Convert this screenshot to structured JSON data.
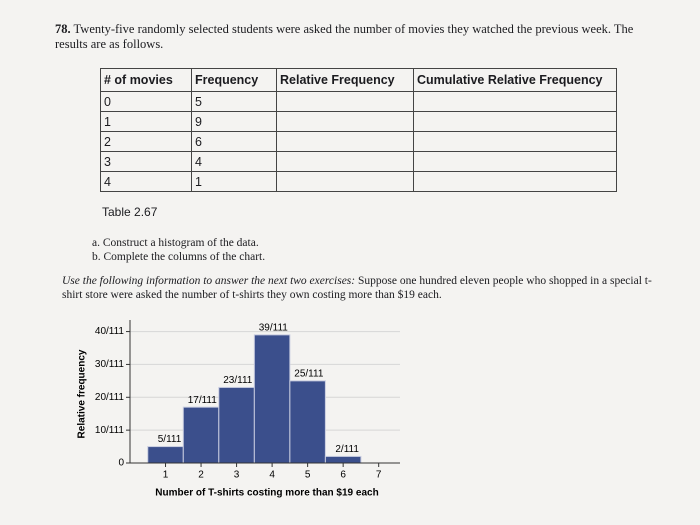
{
  "problem": {
    "number": "78.",
    "text": "Twenty-five randomly selected students were asked the number of movies they watched the previous week. The results are as follows."
  },
  "table": {
    "header": [
      "# of movies",
      "Frequency",
      "Relative Frequency",
      "Cumulative Relative Frequency"
    ],
    "rows": [
      [
        "0",
        "5"
      ],
      [
        "1",
        "9"
      ],
      [
        "2",
        "6"
      ],
      [
        "3",
        "4"
      ],
      [
        "4",
        "1"
      ]
    ],
    "caption": "Table 2.67"
  },
  "parts": [
    "a.  Construct a histogram of the data.",
    "b.  Complete the columns of the chart."
  ],
  "info": {
    "lead": "Use the following information to answer the next two exercises:",
    "text": "Suppose one hundred eleven people who shopped in a special t-shirt store were asked the number of t-shirts they own costing more than $19 each."
  },
  "chart_data": {
    "type": "histogram",
    "xlabel": "Number of T-shirts costing more than $19 each",
    "ylabel": "Relative frequency",
    "bins": [
      0.5,
      1.5,
      2.5,
      3.5,
      4.5,
      5.5,
      6.5
    ],
    "values": [
      5,
      17,
      23,
      39,
      25,
      2
    ],
    "value_labels": [
      "5/111",
      "17/111",
      "23/111",
      "39/111",
      "25/111",
      "2/111"
    ],
    "color": "#3b4f8c",
    "xlim": [
      0,
      7.6
    ],
    "xticks": [
      1,
      2,
      3,
      4,
      5,
      6,
      7
    ],
    "ylim": [
      0,
      42
    ],
    "yticks": [
      0,
      {
        "value": 10,
        "label": "10/111"
      },
      {
        "value": 20,
        "label": "20/111"
      },
      {
        "value": 30,
        "label": "30/111"
      },
      {
        "value": 40,
        "label": "40/111"
      }
    ],
    "grid": true
  }
}
